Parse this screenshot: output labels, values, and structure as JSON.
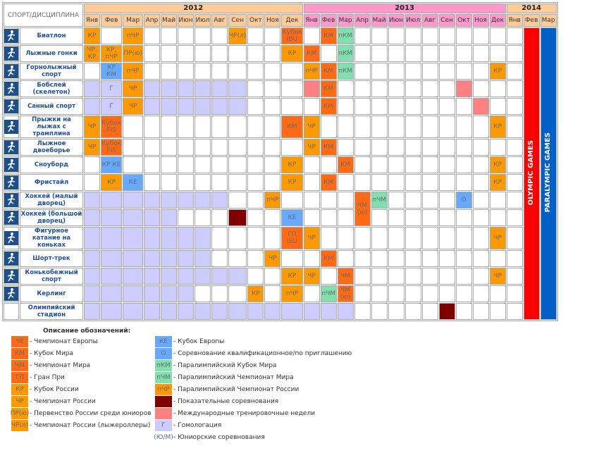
{
  "header": {
    "title": "СПОРТ/ДИСЦИПЛИНА",
    "years": [
      {
        "label": "2012",
        "months": 12
      },
      {
        "label": "2013",
        "months": 12
      },
      {
        "label": "2014",
        "months": 3
      }
    ],
    "months": [
      "Янв",
      "Фев",
      "Мар",
      "Апр",
      "Май",
      "Июн",
      "Июл",
      "Авг",
      "Сен",
      "Окт",
      "Ноя",
      "Дек"
    ]
  },
  "games": {
    "olympic": "OLYMPIC GAMES",
    "paralympic": "PARALYMPIC GAMES",
    "olympic_color": "#ff0000",
    "paralympic_color": "#0060c8"
  },
  "rows": [
    {
      "name": "Биатлон",
      "icon": "biathlon-icon",
      "lav": [],
      "cells": [
        {
          "m": 0,
          "t": "orange",
          "l": "КР"
        },
        {
          "m": 2,
          "t": "orange",
          "l": "пЧР"
        },
        {
          "m": 8,
          "t": "orange",
          "l": "ЧР(л)"
        },
        {
          "m": 11,
          "t": "red",
          "l": "Кубок IBU"
        },
        {
          "m": 13,
          "t": "red",
          "l": "КМ"
        },
        {
          "m": 14,
          "t": "green",
          "l": "пКМ"
        }
      ]
    },
    {
      "name": "Лыжные гонки",
      "icon": "cross-country-skiing-icon",
      "lav": [],
      "cells": [
        {
          "m": 0,
          "t": "orange",
          "l": "ЧР, КР"
        },
        {
          "m": 1,
          "t": "orange",
          "l": "КР, пЧР"
        },
        {
          "m": 2,
          "t": "orange",
          "l": "ПР(ю)"
        },
        {
          "m": 11,
          "t": "orange",
          "l": "КР"
        },
        {
          "m": 12,
          "t": "red",
          "l": "КМ"
        },
        {
          "m": 14,
          "t": "green",
          "l": "пКМ"
        }
      ]
    },
    {
      "name": "Горнолыжный спорт",
      "icon": "alpine-skiing-icon",
      "lav": [],
      "cells": [
        {
          "m": 1,
          "t": "blue",
          "l": "КР КМ"
        },
        {
          "m": 2,
          "t": "orange",
          "l": "пЧР"
        },
        {
          "m": 12,
          "t": "orange",
          "l": "пЧР"
        },
        {
          "m": 13,
          "t": "red",
          "l": "КМ"
        },
        {
          "m": 14,
          "t": "green",
          "l": "пКМ"
        },
        {
          "m": 23,
          "t": "orange",
          "l": "КР"
        }
      ]
    },
    {
      "name": "Бобслей (скелетон)",
      "icon": "bobsleigh-icon",
      "lav": [
        0,
        1,
        3,
        4,
        5,
        6,
        7,
        8
      ],
      "cells": [
        {
          "m": 1,
          "t": "lav",
          "l": "Г"
        },
        {
          "m": 2,
          "t": "orange",
          "l": "ЧР"
        },
        {
          "m": 12,
          "t": "pink",
          "l": ""
        },
        {
          "m": 13,
          "t": "red",
          "l": "КМ"
        },
        {
          "m": 21,
          "t": "pink",
          "l": ""
        }
      ]
    },
    {
      "name": "Санный спорт",
      "icon": "luge-icon",
      "lav": [
        0,
        3,
        4,
        5,
        6,
        7,
        8
      ],
      "cells": [
        {
          "m": 1,
          "t": "lav",
          "l": "Г"
        },
        {
          "m": 2,
          "t": "orange",
          "l": "ЧР"
        },
        {
          "m": 13,
          "t": "red",
          "l": "КМ"
        },
        {
          "m": 22,
          "t": "pink",
          "l": ""
        }
      ]
    },
    {
      "name": "Прыжки на лыжах с трамплина",
      "icon": "ski-jumping-icon",
      "lav": [],
      "cells": [
        {
          "m": 0,
          "t": "orange",
          "l": "ЧР"
        },
        {
          "m": 1,
          "t": "red",
          "l": "Кубок FIS"
        },
        {
          "m": 11,
          "t": "red",
          "l": "КМ"
        },
        {
          "m": 12,
          "t": "orange",
          "l": "ЧР"
        },
        {
          "m": 23,
          "t": "orange",
          "l": "КР"
        }
      ]
    },
    {
      "name": "Лыжное двоеборье",
      "icon": "nordic-combined-icon",
      "lav": [],
      "cells": [
        {
          "m": 0,
          "t": "orange",
          "l": "ЧР"
        },
        {
          "m": 1,
          "t": "red",
          "l": "Кубок FIS"
        },
        {
          "m": 12,
          "t": "orange",
          "l": "ЧР"
        },
        {
          "m": 13,
          "t": "red",
          "l": "КМ"
        }
      ]
    },
    {
      "name": "Сноуборд",
      "icon": "snowboard-icon",
      "lav": [],
      "cells": [
        {
          "m": 1,
          "t": "blue",
          "l": "КР КЕ"
        },
        {
          "m": 11,
          "t": "orange",
          "l": "КР"
        },
        {
          "m": 14,
          "t": "red",
          "l": "КМ"
        },
        {
          "m": 23,
          "t": "orange",
          "l": "КР"
        }
      ]
    },
    {
      "name": "Фристайл",
      "icon": "freestyle-icon",
      "lav": [],
      "cells": [
        {
          "m": 1,
          "t": "orange",
          "l": "КР"
        },
        {
          "m": 2,
          "t": "blue",
          "l": "КЕ"
        },
        {
          "m": 11,
          "t": "orange",
          "l": "КР"
        },
        {
          "m": 13,
          "t": "red",
          "l": "КМ"
        },
        {
          "m": 23,
          "t": "orange",
          "l": "КР"
        }
      ]
    },
    {
      "name": "Хоккей (малый дворец)",
      "icon": "hockey-icon",
      "lav": [
        0,
        1,
        2,
        3,
        4,
        5,
        6,
        7
      ],
      "cells": [
        {
          "m": 10,
          "t": "orange",
          "l": "пЧР"
        },
        {
          "m": 15,
          "t": "red",
          "l": "ЧМ (ю)",
          "span": 2
        },
        {
          "m": 16,
          "t": "green",
          "l": "пЧМ"
        },
        {
          "m": 21,
          "t": "blue",
          "l": "О"
        }
      ]
    },
    {
      "name": "Хоккей (большой дворец)",
      "icon": "hockey-icon",
      "lav": [
        0,
        1,
        2,
        3,
        4
      ],
      "skip": [
        15
      ],
      "cells": [
        {
          "m": 8,
          "t": "dark",
          "l": ""
        },
        {
          "m": 11,
          "t": "blue",
          "l": "КЕ"
        }
      ]
    },
    {
      "name": "Фигурное катание на коньках",
      "icon": "figure-skating-icon",
      "lav": [
        0,
        1,
        2,
        3,
        4,
        5,
        6
      ],
      "cells": [
        {
          "m": 11,
          "t": "red",
          "l": "ГП ISU"
        },
        {
          "m": 12,
          "t": "orange",
          "l": "ЧР"
        },
        {
          "m": 23,
          "t": "orange",
          "l": "ЧР"
        }
      ]
    },
    {
      "name": "Шорт-трек",
      "icon": "short-track-icon",
      "lav": [
        0,
        1,
        2,
        3,
        4,
        5,
        6
      ],
      "cells": [
        {
          "m": 10,
          "t": "orange",
          "l": "ЧР"
        },
        {
          "m": 13,
          "t": "red",
          "l": "КМ"
        }
      ]
    },
    {
      "name": "Конькобежный спорт",
      "icon": "speed-skating-icon",
      "lav": [
        0,
        1,
        2,
        3,
        4,
        5,
        6,
        7,
        8
      ],
      "cells": [
        {
          "m": 11,
          "t": "orange",
          "l": "КР"
        },
        {
          "m": 12,
          "t": "orange",
          "l": "ЧР"
        },
        {
          "m": 14,
          "t": "red",
          "l": "ЧМ"
        },
        {
          "m": 23,
          "t": "orange",
          "l": "ЧР"
        }
      ]
    },
    {
      "name": "Керлинг",
      "icon": "curling-icon",
      "lav": [
        0,
        1,
        2,
        3,
        4,
        5
      ],
      "cells": [
        {
          "m": 9,
          "t": "orange",
          "l": "КР"
        },
        {
          "m": 11,
          "t": "orange",
          "l": "пЧР"
        },
        {
          "m": 13,
          "t": "green",
          "l": "пЧМ"
        },
        {
          "m": 14,
          "t": "red",
          "l": "ЧМ (ю)"
        }
      ]
    },
    {
      "name": "Олимпийский стадион",
      "icon": "",
      "lav": [
        0,
        1,
        2,
        3,
        4,
        5,
        6,
        7,
        8,
        9,
        10,
        11,
        12,
        13,
        14
      ],
      "cells": [
        {
          "m": 20,
          "t": "dark",
          "l": ""
        }
      ]
    }
  ],
  "legend": {
    "title": "Описание обозначений:",
    "left": [
      {
        "t": "red",
        "s": "ЧЕ",
        "l": "- Чемпионат Европы"
      },
      {
        "t": "red",
        "s": "КМ",
        "l": "- Кубок Мира"
      },
      {
        "t": "red",
        "s": "ЧМ",
        "l": "- Чемпионат Мира"
      },
      {
        "t": "red",
        "s": "ГП",
        "l": "- Гран При"
      },
      {
        "t": "orange",
        "s": "КР",
        "l": "- Кубок России"
      },
      {
        "t": "orange",
        "s": "ЧР",
        "l": "- Чемпионат России"
      },
      {
        "t": "orange",
        "s": "ПР(ю)",
        "l": "- Первенство России среди юниоров"
      },
      {
        "t": "orange",
        "s": "ЧР(л)",
        "l": "- Чемпионат России (лыжероллеры)"
      }
    ],
    "right": [
      {
        "t": "blue",
        "s": "КЕ",
        "l": "- Кубок Европы"
      },
      {
        "t": "blue",
        "s": "О",
        "l": "- Соревнование квалификационное/по приглашению"
      },
      {
        "t": "green",
        "s": "пКМ",
        "l": "- Паралимпийский Кубок Мира"
      },
      {
        "t": "green",
        "s": "пЧМ",
        "l": "- Паралимпийский Чемпионат Мира"
      },
      {
        "t": "orange",
        "s": "пЧР",
        "l": "- Паралимпийский Чемпионат России"
      },
      {
        "t": "dark",
        "s": "",
        "l": "- Показательные соревнования"
      },
      {
        "t": "pink",
        "s": "",
        "l": "- Международные тренировочные недели"
      },
      {
        "t": "lav",
        "s": "Г",
        "l": "- Гомологация"
      },
      {
        "t": "none",
        "s": "(Ю/М)",
        "l": "- Юниорские соревнования"
      }
    ]
  }
}
